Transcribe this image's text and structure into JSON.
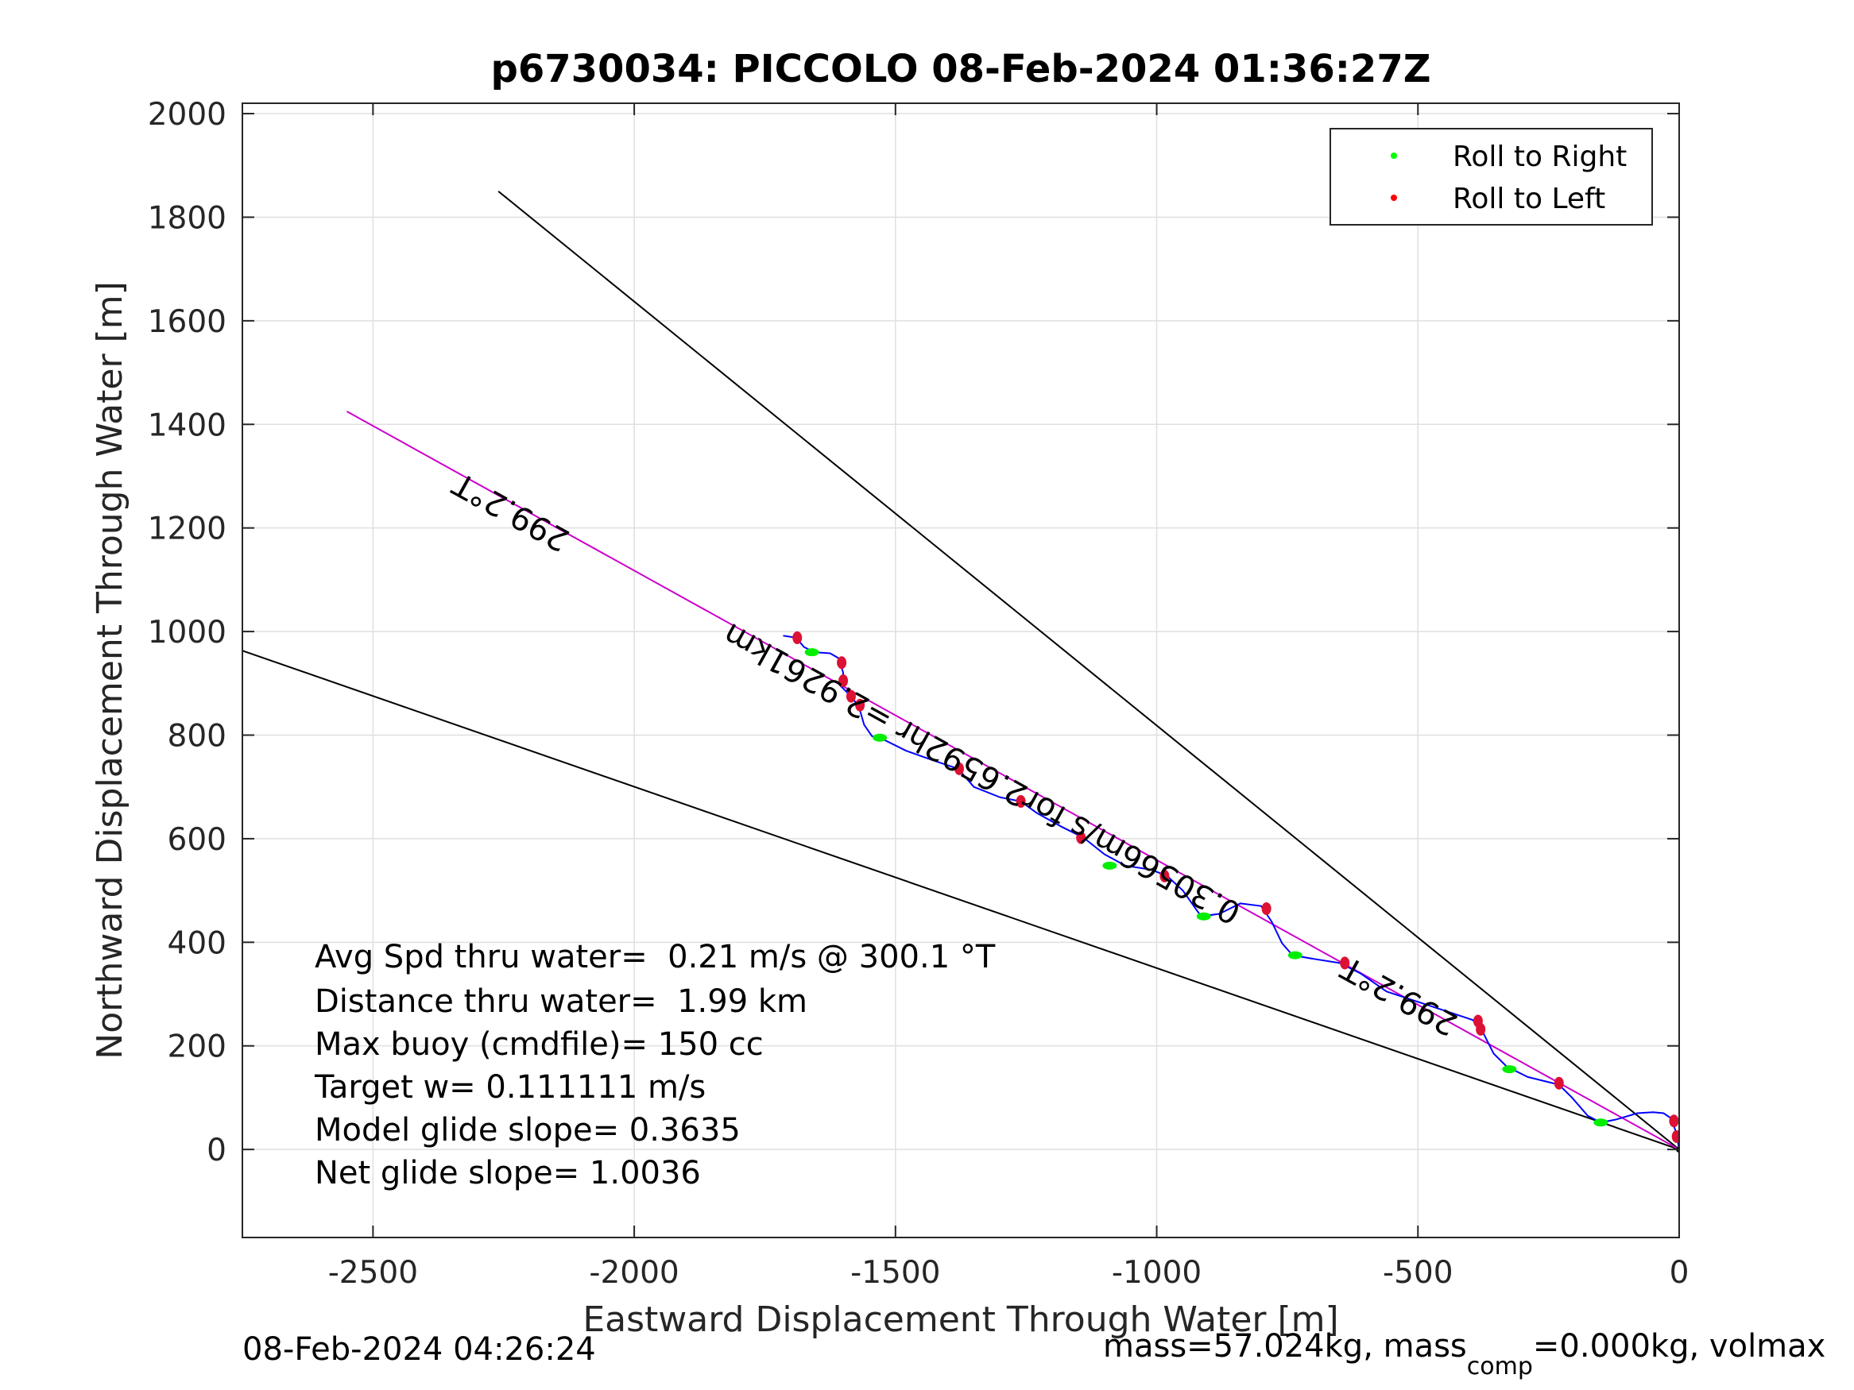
{
  "chart_data": {
    "type": "line",
    "title": "p6730034: PICCOLO 08-Feb-2024 01:36:27Z",
    "xlabel": "Eastward Displacement Through Water [m]",
    "ylabel": "Northward Displacement Through Water [m]",
    "xlim": [
      -2750,
      0
    ],
    "ylim": [
      -170,
      2020
    ],
    "xticks": [
      -2500,
      -2000,
      -1500,
      -1000,
      -500,
      0
    ],
    "yticks": [
      0,
      200,
      400,
      600,
      800,
      1000,
      1200,
      1400,
      1600,
      1800,
      2000
    ],
    "xtick_labels": [
      "-2500",
      "-2000",
      "-1500",
      "-1000",
      "-500",
      "0"
    ],
    "ytick_labels": [
      "0",
      "200",
      "400",
      "600",
      "800",
      "1000",
      "1200",
      "1400",
      "1600",
      "1800",
      "2000"
    ],
    "grid": true,
    "legend": {
      "location": "top-right",
      "entries": [
        {
          "label": "Roll to Right",
          "color": "#00ff00"
        },
        {
          "label": "Roll to Left",
          "color": "#ff0000"
        }
      ]
    },
    "reference_lines": [
      {
        "color": "#000000",
        "points": [
          [
            0,
            0
          ],
          [
            -2260,
            1850
          ]
        ]
      },
      {
        "color": "#000000",
        "points": [
          [
            0,
            0
          ],
          [
            -2750,
            963
          ]
        ]
      },
      {
        "color": "#cc00cc",
        "points": [
          [
            0,
            0
          ],
          [
            -2550,
            1425
          ]
        ]
      }
    ],
    "track": {
      "color": "#0000ff",
      "points": [
        [
          -1715,
          992
        ],
        [
          -1690,
          988
        ],
        [
          -1675,
          970
        ],
        [
          -1655,
          960
        ],
        [
          -1625,
          958
        ],
        [
          -1608,
          948
        ],
        [
          -1600,
          920
        ],
        [
          -1605,
          895
        ],
        [
          -1585,
          875
        ],
        [
          -1570,
          855
        ],
        [
          -1560,
          820
        ],
        [
          -1545,
          798
        ],
        [
          -1520,
          790
        ],
        [
          -1480,
          770
        ],
        [
          -1430,
          752
        ],
        [
          -1380,
          735
        ],
        [
          -1350,
          700
        ],
        [
          -1300,
          680
        ],
        [
          -1260,
          672
        ],
        [
          -1230,
          650
        ],
        [
          -1180,
          622
        ],
        [
          -1140,
          602
        ],
        [
          -1100,
          570
        ],
        [
          -1060,
          548
        ],
        [
          -1010,
          540
        ],
        [
          -980,
          528
        ],
        [
          -950,
          500
        ],
        [
          -915,
          450
        ],
        [
          -880,
          455
        ],
        [
          -840,
          475
        ],
        [
          -800,
          470
        ],
        [
          -780,
          440
        ],
        [
          -760,
          398
        ],
        [
          -740,
          375
        ],
        [
          -700,
          368
        ],
        [
          -650,
          360
        ],
        [
          -610,
          340
        ],
        [
          -560,
          305
        ],
        [
          -500,
          285
        ],
        [
          -440,
          265
        ],
        [
          -395,
          250
        ],
        [
          -375,
          225
        ],
        [
          -355,
          185
        ],
        [
          -330,
          160
        ],
        [
          -290,
          140
        ],
        [
          -230,
          125
        ],
        [
          -205,
          100
        ],
        [
          -175,
          65
        ],
        [
          -150,
          52
        ],
        [
          -120,
          58
        ],
        [
          -80,
          70
        ],
        [
          -50,
          72
        ],
        [
          -30,
          70
        ],
        [
          -15,
          60
        ],
        [
          -5,
          30
        ],
        [
          0,
          0
        ]
      ]
    },
    "roll_right": [
      [
        -1660,
        960
      ],
      [
        -1530,
        795
      ],
      [
        -1090,
        548
      ],
      [
        -910,
        450
      ],
      [
        -735,
        375
      ],
      [
        -325,
        155
      ],
      [
        -150,
        52
      ]
    ],
    "roll_left": [
      [
        -1688,
        988
      ],
      [
        -1603,
        940
      ],
      [
        -1600,
        905
      ],
      [
        -1585,
        875
      ],
      [
        -1568,
        858
      ],
      [
        -1378,
        735
      ],
      [
        -1260,
        672
      ],
      [
        -1145,
        602
      ],
      [
        -985,
        528
      ],
      [
        -790,
        465
      ],
      [
        -640,
        360
      ],
      [
        -385,
        248
      ],
      [
        -380,
        232
      ],
      [
        -230,
        128
      ],
      [
        -10,
        55
      ],
      [
        -5,
        25
      ]
    ],
    "annotations": [
      {
        "text": "299.2°T",
        "x": -2120,
        "y": 1190,
        "rotate": 209
      },
      {
        "text": "0.30566m/s for2.6592hr =2.9261km",
        "x": -835,
        "y": 470,
        "rotate": 209
      },
      {
        "text": "299.2°T",
        "x": -420,
        "y": 255,
        "rotate": 209
      }
    ],
    "stats": [
      "Avg Spd thru water=  0.21 m/s @ 300.1 °T",
      "Distance thru water=  1.99 km",
      "Max buoy (cmdfile)= 150 cc",
      "Target w= 0.111111 m/s",
      "Model glide slope= 0.3635",
      "Net glide slope= 1.0036"
    ],
    "footer_left": "08-Feb-2024 04:26:24",
    "footer_right": {
      "pre": "mass=57.024kg, mass",
      "sub": "comp",
      "post": "=0.000kg, volmax"
    }
  }
}
